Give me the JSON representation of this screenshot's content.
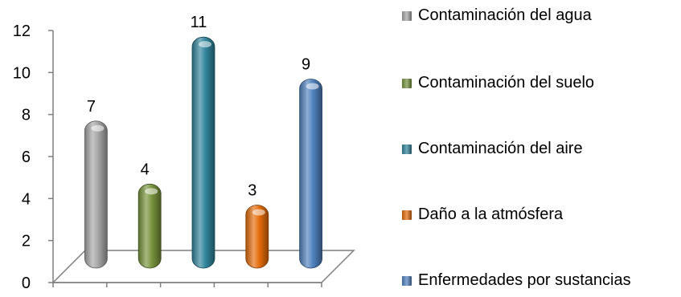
{
  "chart_data": {
    "type": "bar",
    "categories": [
      "Contaminación del agua",
      "Contaminación del suelo",
      "Contaminación del aire",
      "Daño a la atmósfera",
      "Enfermedades por sustancias"
    ],
    "values": [
      7,
      4,
      11,
      3,
      9
    ],
    "ylim": [
      0,
      12
    ],
    "yticks": [
      0,
      2,
      4,
      6,
      8,
      10,
      12
    ],
    "colors": [
      "#a6a6a6",
      "#77933c",
      "#31849b",
      "#e46c0a",
      "#4f81bd"
    ],
    "legend": "right",
    "grid": false,
    "three_d": true
  }
}
